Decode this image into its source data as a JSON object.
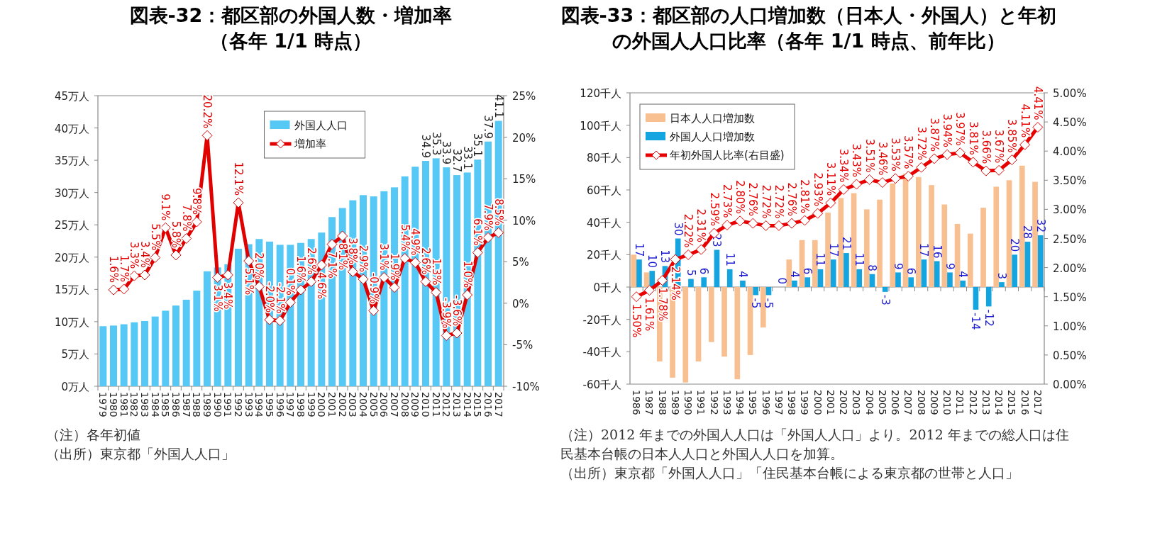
{
  "chart_data": [
    {
      "type": "bar",
      "title": "図表-32：都区部の外国人数・増加率",
      "subtitle": "（各年 1/1 時点）",
      "categories": [
        "1979",
        "1980",
        "1981",
        "1982",
        "1983",
        "1984",
        "1985",
        "1986",
        "1987",
        "1988",
        "1989",
        "1990",
        "1991",
        "1992",
        "1993",
        "1994",
        "1995",
        "1996",
        "1997",
        "1998",
        "1999",
        "2000",
        "2001",
        "2002",
        "2003",
        "2004",
        "2005",
        "2006",
        "2007",
        "2008",
        "2009",
        "2010",
        "2011",
        "2012",
        "2013",
        "2014",
        "2015",
        "2016",
        "2017"
      ],
      "series": [
        {
          "name": "外国人人口",
          "type": "bar",
          "axis": "y",
          "color": "#56c8f5",
          "values": [
            9.3,
            9.4,
            9.6,
            9.9,
            10.1,
            10.8,
            11.7,
            12.5,
            13.4,
            14.8,
            17.8,
            18.4,
            18.9,
            21.3,
            22.0,
            22.8,
            22.4,
            21.9,
            21.9,
            22.2,
            22.8,
            23.8,
            26.2,
            27.6,
            28.8,
            29.6,
            29.4,
            30.2,
            30.8,
            32.5,
            34.0,
            34.9,
            35.3,
            33.9,
            32.7,
            33.1,
            35.1,
            37.9,
            41.1
          ],
          "value_labels": [
            null,
            null,
            null,
            null,
            null,
            null,
            null,
            null,
            null,
            null,
            null,
            null,
            null,
            null,
            null,
            null,
            null,
            null,
            null,
            null,
            null,
            null,
            null,
            null,
            null,
            null,
            null,
            null,
            null,
            null,
            null,
            "34.9",
            "35.3",
            "33.9",
            "32.7",
            "33.1",
            "35.1",
            "37.9",
            "41.1"
          ]
        },
        {
          "name": "増加率",
          "type": "line",
          "axis": "y2",
          "color": "#e00000",
          "marker": "diamond",
          "values": [
            null,
            1.6,
            1.7,
            3.3,
            3.4,
            5.5,
            9.1,
            5.8,
            7.8,
            9.8,
            20.2,
            3.1,
            3.4,
            12.1,
            5.1,
            2.0,
            -2.0,
            -2.1,
            0.1,
            1.6,
            2.6,
            4.6,
            7.1,
            8.1,
            3.8,
            2.9,
            -0.9,
            3.1,
            1.9,
            5.4,
            4.9,
            2.6,
            1.3,
            -3.9,
            -3.6,
            1.0,
            6.1,
            7.9,
            8.5
          ],
          "value_labels": [
            null,
            "1.6%",
            "1.7%",
            "3.3%",
            "3.4%",
            "5.5%",
            "9.1%",
            "5.8%",
            "7.8%",
            "9.8%",
            "20.2%",
            "3.1%",
            "3.4%",
            "12.1%",
            "5.1%",
            "2.0%",
            "-2.0%",
            "-2.1%",
            "0.1%",
            "1.6%",
            "2.6%",
            "4.6%",
            "7.1%",
            "8.1%",
            "3.8%",
            "2.9%",
            "-0.9%",
            "3.1%",
            "1.9%",
            "5.4%",
            "4.9%",
            "2.6%",
            "1.3%",
            "-3.9%",
            "-3.6%",
            "1.0%",
            "6.1%",
            "7.9%",
            "8.5%"
          ]
        }
      ],
      "ylim": [
        0,
        45
      ],
      "yticks": [
        {
          "value": 0,
          "label": "0万人"
        },
        {
          "value": 5,
          "label": "5万人"
        },
        {
          "value": 10,
          "label": "10万人"
        },
        {
          "value": 15,
          "label": "15万人"
        },
        {
          "value": 20,
          "label": "20万人"
        },
        {
          "value": 25,
          "label": "25万人"
        },
        {
          "value": 30,
          "label": "30万人"
        },
        {
          "value": 35,
          "label": "35万人"
        },
        {
          "value": 40,
          "label": "40万人"
        },
        {
          "value": 45,
          "label": "45万人"
        }
      ],
      "y2lim": [
        -10,
        25
      ],
      "y2ticks": [
        {
          "value": -10,
          "label": "-10%"
        },
        {
          "value": -5,
          "label": "-5%"
        },
        {
          "value": 0,
          "label": "0%"
        },
        {
          "value": 5,
          "label": "5%"
        },
        {
          "value": 10,
          "label": "10%"
        },
        {
          "value": 15,
          "label": "15%"
        },
        {
          "value": 20,
          "label": "20%"
        },
        {
          "value": 25,
          "label": "25%"
        }
      ],
      "legend": "top right",
      "annotations": [
        "（注）各年初値",
        "（出所）東京都「外国人人口」"
      ]
    },
    {
      "type": "bar",
      "title": "図表-33：都区部の人口増加数（日本人・外国人）と年初の外国人人口比率（各年 1/1 時点、前年比）",
      "categories": [
        "1986",
        "1987",
        "1988",
        "1989",
        "1990",
        "1991",
        "1992",
        "1993",
        "1994",
        "1995",
        "1996",
        "1997",
        "1998",
        "1999",
        "2000",
        "2001",
        "2002",
        "2003",
        "2004",
        "2005",
        "2006",
        "2007",
        "2008",
        "2009",
        "2010",
        "2011",
        "2012",
        "2013",
        "2014",
        "2015",
        "2016",
        "2017"
      ],
      "series": [
        {
          "name": "日本人人口増加数",
          "type": "bar",
          "axis": "y",
          "color": "#f8bf90",
          "values": [
            20,
            9,
            -46,
            -56,
            -59,
            -46,
            -34,
            -43,
            -57,
            -42,
            -25,
            0,
            17,
            29,
            29,
            46,
            55,
            58,
            48,
            54,
            64,
            70,
            68,
            63,
            51,
            39,
            33,
            49,
            62,
            66,
            75,
            65
          ]
        },
        {
          "name": "外国人人口増加数",
          "type": "bar",
          "axis": "y",
          "color": "#14a4e0",
          "values": [
            17,
            10,
            13,
            30,
            5,
            6,
            23,
            11,
            4,
            -5,
            -5,
            0,
            4,
            6,
            11,
            17,
            21,
            11,
            8,
            -3,
            9,
            6,
            17,
            16,
            9,
            4,
            -14,
            -12,
            3,
            20,
            28,
            32
          ],
          "value_labels": [
            "17",
            "10",
            "13",
            "30",
            "5",
            "6",
            "23",
            "11",
            "4",
            "-5",
            "-5",
            "0",
            "4",
            "6",
            "11",
            "17",
            "21",
            "11",
            "8",
            "-3",
            "9",
            "6",
            "17",
            "16",
            "9",
            "4",
            "-14",
            "-12",
            "3",
            "20",
            "28",
            "32"
          ]
        },
        {
          "name": "年初外国人比率(右目盛)",
          "type": "line",
          "axis": "y2",
          "color": "#e80000",
          "marker": "diamond",
          "values": [
            1.5,
            1.61,
            1.78,
            2.14,
            2.22,
            2.31,
            2.59,
            2.73,
            2.8,
            2.76,
            2.72,
            2.72,
            2.76,
            2.81,
            2.93,
            3.11,
            3.34,
            3.43,
            3.51,
            3.46,
            3.53,
            3.57,
            3.72,
            3.87,
            3.94,
            3.97,
            3.81,
            3.66,
            3.67,
            3.85,
            4.11,
            4.41
          ],
          "value_labels": [
            "1.50%",
            "1.61%",
            "1.78%",
            "2.14%",
            "2.22%",
            "2.31%",
            "2.59%",
            "2.73%",
            "2.80%",
            "2.76%",
            "2.72%",
            "2.72%",
            "2.76%",
            "2.81%",
            "2.93%",
            "3.11%",
            "3.34%",
            "3.43%",
            "3.51%",
            "3.46%",
            "3.53%",
            "3.57%",
            "3.72%",
            "3.87%",
            "3.94%",
            "3.97%",
            "3.81%",
            "3.66%",
            "3.67%",
            "3.85%",
            "4.11%",
            "4.41%"
          ]
        }
      ],
      "ylim": [
        -60,
        120
      ],
      "yticks": [
        {
          "value": -60,
          "label": "-60千人"
        },
        {
          "value": -40,
          "label": "-40千人"
        },
        {
          "value": -20,
          "label": "-20千人"
        },
        {
          "value": 0,
          "label": "0千人"
        },
        {
          "value": 20,
          "label": "20千人"
        },
        {
          "value": 40,
          "label": "40千人"
        },
        {
          "value": 60,
          "label": "60千人"
        },
        {
          "value": 80,
          "label": "80千人"
        },
        {
          "value": 100,
          "label": "100千人"
        },
        {
          "value": 120,
          "label": "120千人"
        }
      ],
      "y2lim": [
        0,
        5
      ],
      "y2ticks": [
        {
          "value": 0,
          "label": "0.00%"
        },
        {
          "value": 0.5,
          "label": "0.50%"
        },
        {
          "value": 1,
          "label": "1.00%"
        },
        {
          "value": 1.5,
          "label": "1.50%"
        },
        {
          "value": 2,
          "label": "2.00%"
        },
        {
          "value": 2.5,
          "label": "2.50%"
        },
        {
          "value": 3,
          "label": "3.00%"
        },
        {
          "value": 3.5,
          "label": "3.50%"
        },
        {
          "value": 4,
          "label": "4.00%"
        },
        {
          "value": 4.5,
          "label": "4.50%"
        },
        {
          "value": 5,
          "label": "5.00%"
        }
      ],
      "legend": "top left",
      "annotations": [
        "（注）2012 年までの外国人人口は「外国人人口」より。2012 年までの総人口は住民基本台帳の日本人人口と外国人人口を加算。",
        "（出所）東京都「外国人人口」「住民基本台帳による東京都の世帯と人口」"
      ]
    }
  ]
}
